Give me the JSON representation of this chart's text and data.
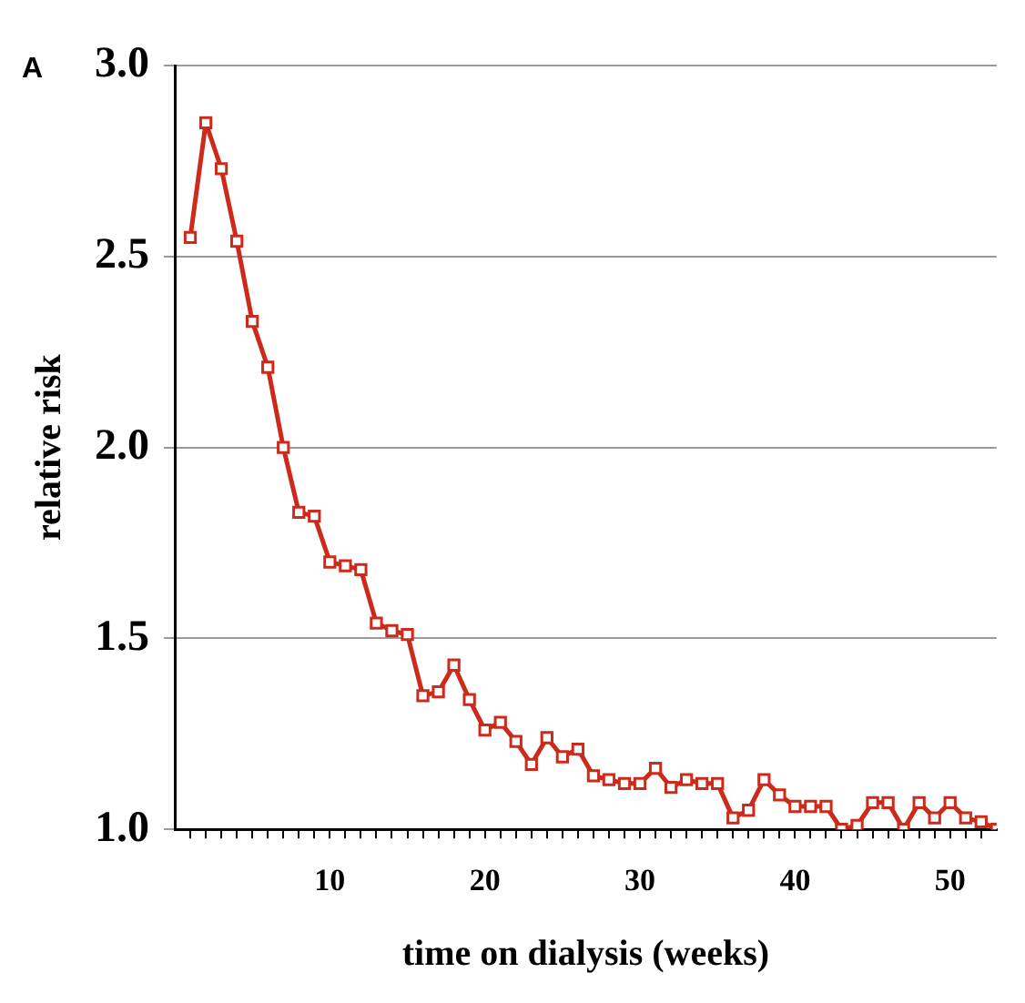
{
  "chart_data": {
    "type": "line",
    "annotations": [
      "A"
    ],
    "xlabel": "time on dialysis (weeks)",
    "ylabel": "relative risk",
    "x": [
      1,
      2,
      3,
      4,
      5,
      6,
      7,
      8,
      9,
      10,
      11,
      12,
      13,
      14,
      15,
      16,
      17,
      18,
      19,
      20,
      21,
      22,
      23,
      24,
      25,
      26,
      27,
      28,
      29,
      30,
      31,
      32,
      33,
      34,
      35,
      36,
      37,
      38,
      39,
      40,
      41,
      42,
      43,
      44,
      45,
      46,
      47,
      48,
      49,
      50,
      51,
      52,
      53
    ],
    "series": [
      {
        "color": "#cc2a1a",
        "values": [
          2.55,
          2.85,
          2.73,
          2.54,
          2.33,
          2.21,
          2.0,
          1.83,
          1.82,
          1.7,
          1.69,
          1.68,
          1.54,
          1.52,
          1.51,
          1.35,
          1.36,
          1.43,
          1.34,
          1.26,
          1.28,
          1.23,
          1.17,
          1.24,
          1.19,
          1.21,
          1.14,
          1.13,
          1.12,
          1.12,
          1.16,
          1.11,
          1.13,
          1.12,
          1.12,
          1.03,
          1.05,
          1.13,
          1.09,
          1.06,
          1.06,
          1.06,
          1.0,
          1.01,
          1.07,
          1.07,
          1.0,
          1.07,
          1.03,
          1.07,
          1.03,
          1.02,
          1.0
        ]
      }
    ],
    "xlim": [
      0,
      53
    ],
    "xticks": [
      {
        "value": 1,
        "label": null
      },
      {
        "value": 2,
        "label": null
      },
      {
        "value": 3,
        "label": null
      },
      {
        "value": 4,
        "label": null
      },
      {
        "value": 5,
        "label": null
      },
      {
        "value": 6,
        "label": null
      },
      {
        "value": 7,
        "label": null
      },
      {
        "value": 8,
        "label": null
      },
      {
        "value": 9,
        "label": null
      },
      10,
      {
        "value": 11,
        "label": null
      },
      {
        "value": 12,
        "label": null
      },
      {
        "value": 13,
        "label": null
      },
      {
        "value": 14,
        "label": null
      },
      {
        "value": 15,
        "label": null
      },
      {
        "value": 16,
        "label": null
      },
      {
        "value": 17,
        "label": null
      },
      {
        "value": 18,
        "label": null
      },
      {
        "value": 19,
        "label": null
      },
      20,
      {
        "value": 21,
        "label": null
      },
      {
        "value": 22,
        "label": null
      },
      {
        "value": 23,
        "label": null
      },
      {
        "value": 24,
        "label": null
      },
      {
        "value": 25,
        "label": null
      },
      {
        "value": 26,
        "label": null
      },
      {
        "value": 27,
        "label": null
      },
      {
        "value": 28,
        "label": null
      },
      {
        "value": 29,
        "label": null
      },
      30,
      {
        "value": 31,
        "label": null
      },
      {
        "value": 32,
        "label": null
      },
      {
        "value": 33,
        "label": null
      },
      {
        "value": 34,
        "label": null
      },
      {
        "value": 35,
        "label": null
      },
      {
        "value": 36,
        "label": null
      },
      {
        "value": 37,
        "label": null
      },
      {
        "value": 38,
        "label": null
      },
      {
        "value": 39,
        "label": null
      },
      40,
      {
        "value": 41,
        "label": null
      },
      {
        "value": 42,
        "label": null
      },
      {
        "value": 43,
        "label": null
      },
      {
        "value": 44,
        "label": null
      },
      {
        "value": 45,
        "label": null
      },
      {
        "value": 46,
        "label": null
      },
      {
        "value": 47,
        "label": null
      },
      {
        "value": 48,
        "label": null
      },
      {
        "value": 49,
        "label": null
      },
      50,
      {
        "value": 51,
        "label": null
      },
      {
        "value": 52,
        "label": null
      }
    ],
    "ylim": [
      1.0,
      3.0
    ],
    "yticks": [
      {
        "value": 1.0,
        "label": "1.0"
      },
      1.5,
      {
        "value": 2.0,
        "label": "2.0"
      },
      2.5,
      {
        "value": 3.0,
        "label": "3.0"
      }
    ],
    "grid": "y",
    "legend": false,
    "marker": "square",
    "line_style": "solid"
  }
}
